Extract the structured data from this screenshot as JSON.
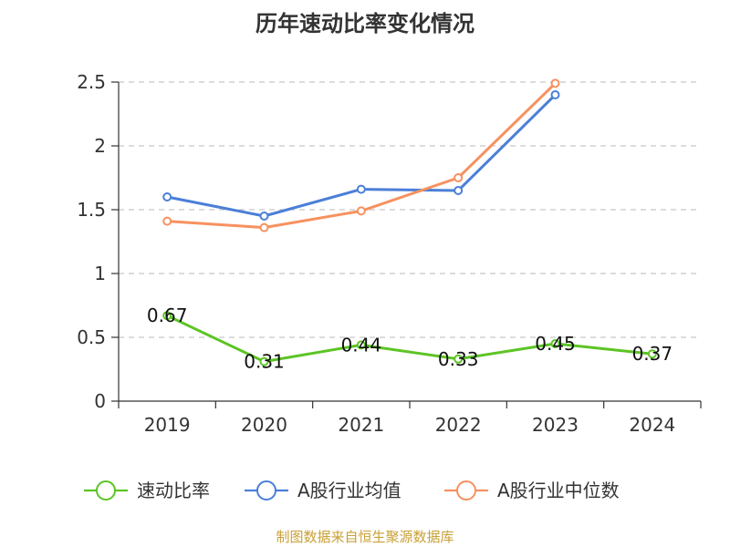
{
  "colors": {
    "quick_ratio": "#5cc424",
    "industry_mean": "#4b7fd8",
    "industry_median": "#f7915f",
    "source": "#c8a036"
  },
  "footer": {
    "source": "制图数据来自恒生聚源数据库"
  },
  "chart_data": {
    "type": "line",
    "title": "历年速动比率变化情况",
    "xlabel": "",
    "ylabel": "",
    "categories": [
      "2019",
      "2020",
      "2021",
      "2022",
      "2023",
      "2024"
    ],
    "ylim": [
      0,
      2.5
    ],
    "yticks": [
      "0",
      "0.5",
      "1",
      "1.5",
      "2",
      "2.5"
    ],
    "grid": true,
    "legend_position": "bottom",
    "series": [
      {
        "name": "速动比率",
        "values": [
          0.67,
          0.31,
          0.44,
          0.33,
          0.45,
          0.37
        ],
        "labels": [
          "0.67",
          "0.31",
          "0.44",
          "0.33",
          "0.45",
          "0.37"
        ],
        "color_key": "quick_ratio",
        "show_labels": true
      },
      {
        "name": "A股行业均值",
        "values": [
          1.6,
          1.45,
          1.66,
          1.65,
          2.4,
          null
        ],
        "color_key": "industry_mean",
        "show_labels": false
      },
      {
        "name": "A股行业中位数",
        "values": [
          1.41,
          1.36,
          1.49,
          1.75,
          2.49,
          null
        ],
        "color_key": "industry_median",
        "show_labels": false
      }
    ]
  }
}
